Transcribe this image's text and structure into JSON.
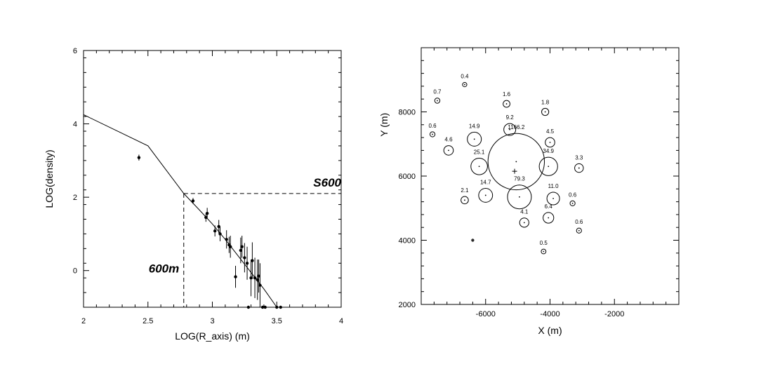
{
  "chart_data": [
    {
      "type": "scatter",
      "xlabel": "LOG(R_axis) (m)",
      "ylabel": "LOG(density)",
      "xlim": [
        2,
        4
      ],
      "ylim": [
        -1,
        6
      ],
      "xticks": [
        "2",
        "2.5",
        "3",
        "3.5",
        "4"
      ],
      "yticks": [
        "0",
        "2",
        "4",
        "6"
      ],
      "grid": false,
      "annotations": {
        "s600": "S600",
        "r600": "600m"
      },
      "reference": {
        "x": 2.778,
        "y": 2.1
      },
      "fit_curve": [
        [
          2.0,
          4.25
        ],
        [
          2.5,
          3.4
        ],
        [
          2.778,
          2.1
        ],
        [
          2.9,
          1.65
        ],
        [
          3.0,
          1.27
        ],
        [
          3.1,
          0.85
        ],
        [
          3.2,
          0.4
        ],
        [
          3.3,
          -0.05
        ],
        [
          3.4,
          -0.5
        ],
        [
          3.5,
          -1.0
        ]
      ],
      "points": [
        {
          "x": 2.43,
          "y": 3.08,
          "err": 0.08
        },
        {
          "x": 2.85,
          "y": 1.9,
          "err": 0.08
        },
        {
          "x": 2.95,
          "y": 1.45,
          "err": 0.12
        },
        {
          "x": 2.96,
          "y": 1.56,
          "err": 0.15
        },
        {
          "x": 3.02,
          "y": 1.08,
          "err": 0.15
        },
        {
          "x": 3.05,
          "y": 1.2,
          "err": 0.18
        },
        {
          "x": 3.06,
          "y": 1.0,
          "err": 0.2
        },
        {
          "x": 3.11,
          "y": 0.85,
          "err": 0.25
        },
        {
          "x": 3.13,
          "y": 0.7,
          "err": 0.22
        },
        {
          "x": 3.14,
          "y": 0.65,
          "err": 0.3
        },
        {
          "x": 3.18,
          "y": -0.17,
          "err": 0.3
        },
        {
          "x": 3.22,
          "y": 0.55,
          "err": 0.35
        },
        {
          "x": 3.23,
          "y": 0.65,
          "err": 0.3
        },
        {
          "x": 3.25,
          "y": 0.35,
          "err": 0.4
        },
        {
          "x": 3.27,
          "y": 0.2,
          "err": 0.45
        },
        {
          "x": 3.28,
          "y": -1.0,
          "err": 0
        },
        {
          "x": 3.3,
          "y": -0.2,
          "err": 0.5
        },
        {
          "x": 3.31,
          "y": 0.27,
          "err": 0.5
        },
        {
          "x": 3.33,
          "y": -0.2,
          "err": 0.55
        },
        {
          "x": 3.35,
          "y": -0.25,
          "err": 0.55
        },
        {
          "x": 3.36,
          "y": -0.15,
          "err": 0.45
        },
        {
          "x": 3.37,
          "y": -0.4,
          "err": 0.6
        },
        {
          "x": 3.39,
          "y": -1.0,
          "err": 0
        },
        {
          "x": 3.41,
          "y": -1.0,
          "err": 0
        },
        {
          "x": 3.5,
          "y": -1.0,
          "err": 0
        },
        {
          "x": 3.53,
          "y": -1.0,
          "err": 0
        }
      ]
    },
    {
      "type": "scatter",
      "subtype": "bubble",
      "xlabel": "X (m)",
      "ylabel": "Y (m)",
      "xlim": [
        -8000,
        0
      ],
      "ylim": [
        2000,
        10000
      ],
      "xticks": [
        "-6000",
        "-4000",
        "-2000"
      ],
      "yticks": [
        "2000",
        "4000",
        "6000",
        "8000"
      ],
      "grid": false,
      "core": {
        "x": -5100,
        "y": 6150
      },
      "points": [
        {
          "label": "0.4",
          "x": -6650,
          "y": 8850,
          "v": 0.4
        },
        {
          "label": "0.7",
          "x": -7500,
          "y": 8350,
          "v": 0.7
        },
        {
          "label": "1.6",
          "x": -5350,
          "y": 8250,
          "v": 1.6
        },
        {
          "label": "1.8",
          "x": -4150,
          "y": 8000,
          "v": 1.8
        },
        {
          "label": "0.6",
          "x": -7650,
          "y": 7300,
          "v": 0.6
        },
        {
          "label": "9.2",
          "x": -5250,
          "y": 7450,
          "v": 9.2
        },
        {
          "label": "14.9",
          "x": -6350,
          "y": 7150,
          "v": 14.9
        },
        {
          "label": "4.5",
          "x": -4000,
          "y": 7050,
          "v": 4.5
        },
        {
          "label": "4.6",
          "x": -7150,
          "y": 6800,
          "v": 4.6
        },
        {
          "label": "1166.2",
          "x": -5050,
          "y": 6450,
          "v": 1166.2
        },
        {
          "label": "25.1",
          "x": -6200,
          "y": 6300,
          "v": 25.1
        },
        {
          "label": "34.9",
          "x": -4050,
          "y": 6300,
          "v": 34.9
        },
        {
          "label": "3.3",
          "x": -3100,
          "y": 6250,
          "v": 3.3
        },
        {
          "label": "14.7",
          "x": -6000,
          "y": 5400,
          "v": 14.7
        },
        {
          "label": "79.3",
          "x": -4950,
          "y": 5350,
          "v": 79.3
        },
        {
          "label": "11.0",
          "x": -3900,
          "y": 5300,
          "v": 11.0
        },
        {
          "label": "2.1",
          "x": -6650,
          "y": 5250,
          "v": 2.1
        },
        {
          "label": "0.6",
          "x": -3300,
          "y": 5150,
          "v": 0.6
        },
        {
          "label": "6.4",
          "x": -4050,
          "y": 4700,
          "v": 6.4
        },
        {
          "label": "4.1",
          "x": -4800,
          "y": 4550,
          "v": 4.1
        },
        {
          "label": "0.6",
          "x": -3100,
          "y": 4300,
          "v": 0.6
        },
        {
          "label": "",
          "x": -6400,
          "y": 4000,
          "v": 0.05
        },
        {
          "label": "0.5",
          "x": -4200,
          "y": 3650,
          "v": 0.5
        }
      ]
    }
  ]
}
